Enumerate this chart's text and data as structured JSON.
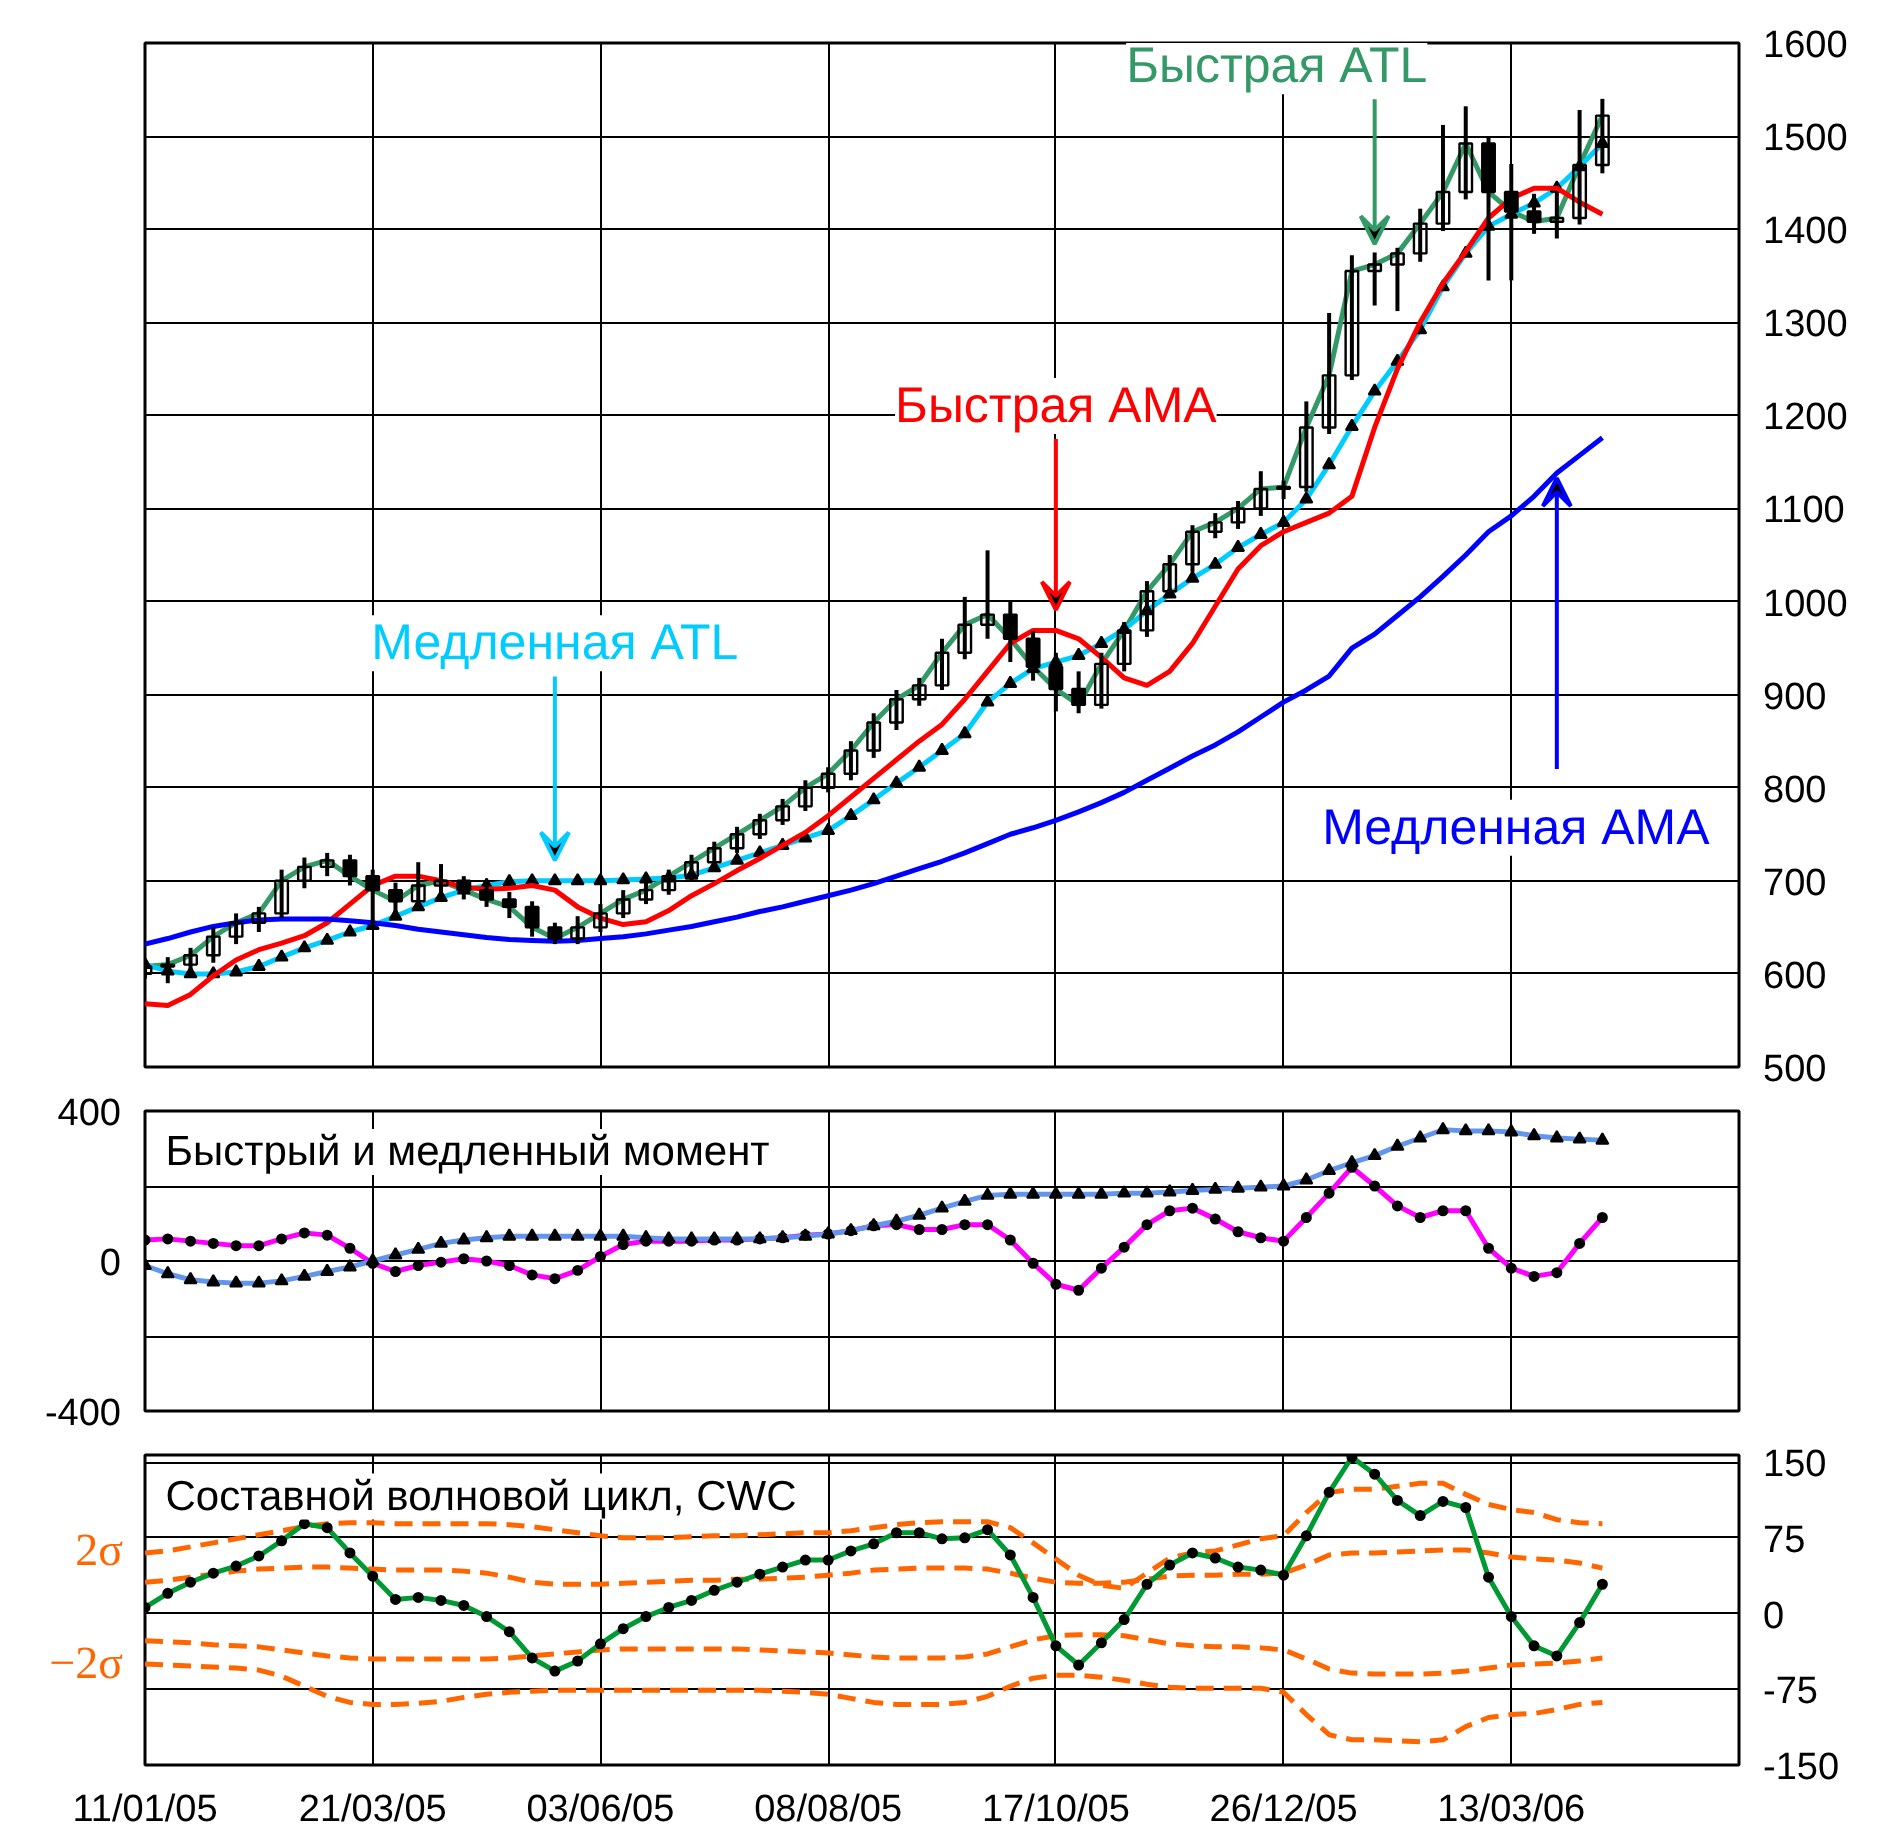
{
  "chart_data": [
    {
      "type": "candlestick",
      "tick_labels": "y",
      "grid": true,
      "categories": [
        null,
        null,
        null,
        null,
        null,
        null,
        null,
        null,
        null,
        null,
        null,
        null,
        null,
        null,
        null,
        null,
        null,
        null,
        null,
        null,
        null,
        null,
        null,
        null,
        null,
        null,
        null,
        null,
        null,
        null,
        null,
        null,
        null,
        null,
        null,
        null,
        null,
        null,
        null,
        null,
        null,
        null,
        null,
        null,
        null,
        null,
        null,
        null,
        null,
        null,
        null,
        null,
        null,
        null,
        null,
        null,
        null,
        null,
        null,
        null,
        null,
        null,
        null,
        null,
        null,
        null,
        null,
        null,
        null,
        null,
        null
      ],
      "ylim": [
        500,
        1600
      ],
      "yticks": [
        500,
        600,
        700,
        800,
        900,
        1000,
        1100,
        1200,
        1300,
        1400,
        1500,
        1600
      ],
      "ohlc": [
        [
          600,
          615,
          595,
          608
        ],
        [
          608,
          618,
          590,
          610
        ],
        [
          610,
          628,
          600,
          620
        ],
        [
          620,
          650,
          612,
          640
        ],
        [
          640,
          665,
          632,
          655
        ],
        [
          655,
          672,
          645,
          665
        ],
        [
          665,
          712,
          660,
          700
        ],
        [
          700,
          725,
          692,
          715
        ],
        [
          715,
          730,
          705,
          722
        ],
        [
          722,
          728,
          695,
          705
        ],
        [
          705,
          712,
          650,
          690
        ],
        [
          690,
          698,
          660,
          678
        ],
        [
          678,
          720,
          672,
          695
        ],
        [
          695,
          718,
          688,
          700
        ],
        [
          700,
          705,
          680,
          690
        ],
        [
          690,
          700,
          672,
          680
        ],
        [
          680,
          688,
          660,
          672
        ],
        [
          672,
          678,
          640,
          650
        ],
        [
          650,
          655,
          632,
          638
        ],
        [
          638,
          662,
          632,
          650
        ],
        [
          650,
          675,
          645,
          665
        ],
        [
          665,
          690,
          660,
          680
        ],
        [
          680,
          698,
          675,
          690
        ],
        [
          690,
          712,
          685,
          705
        ],
        [
          705,
          728,
          700,
          720
        ],
        [
          720,
          742,
          715,
          735
        ],
        [
          735,
          758,
          730,
          750
        ],
        [
          750,
          772,
          745,
          765
        ],
        [
          765,
          788,
          760,
          780
        ],
        [
          780,
          808,
          775,
          800
        ],
        [
          800,
          822,
          795,
          815
        ],
        [
          815,
          850,
          808,
          840
        ],
        [
          840,
          880,
          832,
          870
        ],
        [
          870,
          905,
          862,
          895
        ],
        [
          895,
          918,
          888,
          910
        ],
        [
          910,
          960,
          905,
          945
        ],
        [
          945,
          1005,
          938,
          975
        ],
        [
          975,
          1055,
          960,
          986
        ],
        [
          986,
          1000,
          935,
          960
        ],
        [
          960,
          968,
          915,
          930
        ],
        [
          930,
          945,
          882,
          906
        ],
        [
          906,
          925,
          880,
          889
        ],
        [
          889,
          945,
          885,
          933
        ],
        [
          933,
          978,
          925,
          969
        ],
        [
          969,
          1022,
          962,
          1011
        ],
        [
          1011,
          1050,
          1005,
          1040
        ],
        [
          1040,
          1082,
          1032,
          1075
        ],
        [
          1075,
          1095,
          1068,
          1085
        ],
        [
          1085,
          1108,
          1078,
          1100
        ],
        [
          1100,
          1140,
          1092,
          1121
        ],
        [
          1121,
          1130,
          1110,
          1123
        ],
        [
          1123,
          1215,
          1118,
          1187
        ],
        [
          1187,
          1310,
          1180,
          1243
        ],
        [
          1243,
          1372,
          1238,
          1355
        ],
        [
          1355,
          1375,
          1318,
          1362
        ],
        [
          1362,
          1380,
          1312,
          1374
        ],
        [
          1374,
          1422,
          1365,
          1406
        ],
        [
          1406,
          1512,
          1398,
          1440
        ],
        [
          1440,
          1532,
          1432,
          1492
        ],
        [
          1492,
          1500,
          1345,
          1440
        ],
        [
          1440,
          1470,
          1345,
          1419
        ],
        [
          1419,
          1438,
          1395,
          1408
        ],
        [
          1408,
          1440,
          1390,
          1412
        ],
        [
          1412,
          1528,
          1405,
          1469
        ],
        [
          1469,
          1540,
          1460,
          1522
        ],
        null,
        null,
        null,
        null,
        null,
        null
      ],
      "series": [
        {
          "type": "line",
          "name": "Быстрая ATL",
          "color": "#339966",
          "values": [
            608,
            610,
            620,
            640,
            655,
            665,
            700,
            715,
            722,
            705,
            690,
            678,
            695,
            700,
            690,
            680,
            672,
            650,
            638,
            650,
            665,
            680,
            690,
            705,
            720,
            735,
            750,
            765,
            780,
            800,
            815,
            840,
            870,
            895,
            910,
            945,
            975,
            986,
            960,
            930,
            906,
            889,
            933,
            969,
            1011,
            1040,
            1075,
            1085,
            1100,
            1121,
            1123,
            1187,
            1243,
            1355,
            1362,
            1374,
            1406,
            1440,
            1492,
            1440,
            1419,
            1408,
            1412,
            1469,
            1522,
            null,
            null,
            null,
            null,
            null,
            null
          ]
        },
        {
          "type": "line",
          "name": "Медленная ATL",
          "color": "#00ccff",
          "marker": "triangle",
          "values": [
            610,
            603,
            600,
            600,
            602,
            608,
            618,
            628,
            636,
            645,
            652,
            662,
            672,
            682,
            690,
            695,
            699,
            700,
            700,
            700,
            700,
            701,
            702,
            703,
            706,
            714,
            722,
            730,
            738,
            746,
            754,
            770,
            787,
            805,
            822,
            840,
            858,
            892,
            912,
            928,
            935,
            942,
            955,
            970,
            990,
            1008,
            1025,
            1040,
            1058,
            1072,
            1085,
            1110,
            1147,
            1188,
            1226,
            1258,
            1292,
            1338,
            1374,
            1403,
            1416,
            1428,
            1444,
            1467,
            1492,
            null,
            null,
            null,
            null,
            null,
            null
          ]
        },
        {
          "type": "line",
          "name": "Быстрая AMA",
          "color": "#ff0000",
          "values": [
            568,
            566,
            578,
            598,
            615,
            626,
            633,
            641,
            655,
            675,
            695,
            705,
            705,
            700,
            693,
            691,
            692,
            695,
            690,
            672,
            660,
            653,
            656,
            668,
            684,
            697,
            711,
            724,
            738,
            752,
            770,
            790,
            810,
            830,
            850,
            868,
            895,
            925,
            955,
            969,
            969,
            960,
            940,
            918,
            910,
            925,
            955,
            995,
            1035,
            1060,
            1075,
            1085,
            1095,
            1113,
            1187,
            1250,
            1300,
            1342,
            1376,
            1412,
            1433,
            1444,
            1444,
            1429,
            1416,
            null,
            null,
            null,
            null,
            null,
            null
          ]
        },
        {
          "type": "line",
          "name": "Медленная AMA",
          "color": "#0000ff",
          "values": [
            632,
            638,
            645,
            651,
            655,
            658,
            659,
            659,
            659,
            657,
            655,
            652,
            648,
            645,
            642,
            639,
            637,
            636,
            635,
            636,
            638,
            640,
            643,
            647,
            651,
            656,
            661,
            667,
            672,
            678,
            684,
            690,
            697,
            705,
            713,
            721,
            730,
            740,
            750,
            757,
            765,
            774,
            784,
            795,
            808,
            821,
            834,
            846,
            860,
            876,
            892,
            905,
            920,
            950,
            965,
            985,
            1005,
            1027,
            1050,
            1075,
            1092,
            1113,
            1138,
            1157,
            1176,
            null,
            null,
            null,
            null,
            null,
            null
          ]
        }
      ]
    },
    {
      "type": "line",
      "tick_labels": "y",
      "grid": true,
      "title": "Быстрый и медленный момент",
      "categories": [
        null,
        null,
        null,
        null,
        null,
        null,
        null,
        null,
        null,
        null,
        null,
        null,
        null,
        null,
        null,
        null,
        null,
        null,
        null,
        null,
        null,
        null,
        null,
        null,
        null,
        null,
        null,
        null,
        null,
        null,
        null,
        null,
        null,
        null,
        null,
        null,
        null,
        null,
        null,
        null,
        null,
        null,
        null,
        null,
        null,
        null,
        null,
        null,
        null,
        null,
        null,
        null,
        null,
        null,
        null,
        null,
        null,
        null,
        null,
        null,
        null,
        null,
        null,
        null,
        null,
        null,
        null,
        null,
        null,
        null,
        null
      ],
      "ylim": [
        -400,
        400
      ],
      "yticks": [
        -400,
        {
          "value": -200,
          "label": null
        },
        0,
        {
          "value": 200,
          "label": null
        },
        400
      ],
      "series": [
        {
          "color": "#ff00ff",
          "marker": "circle",
          "values": [
            56,
            59,
            53,
            47,
            41,
            41,
            59,
            75,
            69,
            34,
            -6,
            -28,
            -12,
            -3,
            6,
            0,
            -12,
            -37,
            -47,
            -25,
            12,
            44,
            53,
            53,
            53,
            56,
            56,
            59,
            62,
            69,
            72,
            81,
            94,
            97,
            84,
            84,
            97,
            97,
            56,
            -6,
            -62,
            -78,
            -19,
            37,
            97,
            134,
            141,
            112,
            78,
            62,
            53,
            116,
            181,
            250,
            200,
            147,
            116,
            134,
            134,
            34,
            -19,
            -41,
            -31,
            47,
            116,
            null,
            null,
            null,
            null,
            null,
            null
          ]
        },
        {
          "color": "#6495ed",
          "marker": "triangle",
          "values": [
            -12,
            -34,
            -50,
            -56,
            -59,
            -59,
            -53,
            -41,
            -28,
            -16,
            0,
            16,
            31,
            47,
            56,
            62,
            66,
            66,
            66,
            66,
            66,
            66,
            62,
            59,
            59,
            59,
            59,
            59,
            62,
            66,
            72,
            81,
            94,
            106,
            122,
            141,
            159,
            175,
            178,
            178,
            178,
            178,
            178,
            181,
            181,
            184,
            188,
            191,
            194,
            197,
            200,
            216,
            241,
            262,
            281,
            306,
            328,
            350,
            347,
            347,
            344,
            334,
            328,
            325,
            322,
            null,
            null,
            null,
            null,
            null,
            null
          ]
        }
      ]
    },
    {
      "type": "line",
      "grid": true,
      "title": "Составной волновой цикл, CWC",
      "categories": [
        "11/01/05",
        null,
        null,
        null,
        null,
        null,
        null,
        null,
        null,
        null,
        "21/03/05",
        null,
        null,
        null,
        null,
        null,
        null,
        null,
        null,
        null,
        "03/06/05",
        null,
        null,
        null,
        null,
        null,
        null,
        null,
        null,
        null,
        "08/08/05",
        null,
        null,
        null,
        null,
        null,
        null,
        null,
        null,
        null,
        "17/10/05",
        null,
        null,
        null,
        null,
        null,
        null,
        null,
        null,
        null,
        "26/12/05",
        null,
        null,
        null,
        null,
        null,
        null,
        null,
        null,
        null,
        "13/03/06",
        null,
        null,
        null,
        null,
        null,
        null,
        null,
        null,
        null,
        null
      ],
      "ylim": [
        -150,
        157
      ],
      "yticks": [
        -150,
        -75,
        0,
        75,
        150
      ],
      "annotations": [
        "2σ",
        "−2σ"
      ],
      "series": [
        {
          "color": "#ff6600",
          "line_style": "dashed",
          "values": [
            60,
            62,
            66,
            70,
            74,
            78,
            82,
            86,
            89,
            90,
            90,
            89,
            89,
            89,
            89,
            89,
            88,
            86,
            83,
            80,
            77,
            75,
            75,
            75,
            76,
            77,
            77,
            78,
            79,
            80,
            80,
            82,
            85,
            88,
            90,
            91,
            91,
            91,
            85,
            70,
            54,
            38,
            28,
            25,
            40,
            55,
            60,
            62,
            68,
            74,
            77,
            100,
            120,
            123,
            123,
            126,
            129,
            129,
            118,
            108,
            103,
            100,
            93,
            90,
            89,
            null,
            null,
            null,
            null,
            null,
            null
          ]
        },
        {
          "color": "#ff6600",
          "line_style": "dashed",
          "values": [
            31,
            33,
            36,
            39,
            42,
            44,
            45,
            46,
            46,
            45,
            44,
            43,
            43,
            43,
            42,
            40,
            36,
            31,
            29,
            29,
            29,
            30,
            31,
            32,
            33,
            33,
            34,
            34,
            35,
            36,
            38,
            40,
            43,
            44,
            45,
            45,
            45,
            44,
            40,
            35,
            31,
            30,
            30,
            31,
            34,
            37,
            38,
            38,
            39,
            39,
            40,
            48,
            58,
            60,
            60,
            61,
            62,
            63,
            63,
            60,
            56,
            54,
            53,
            50,
            45,
            null,
            null,
            null,
            null,
            null,
            null
          ]
        },
        {
          "color": "#ff6600",
          "line_style": "dashed",
          "values": [
            -27,
            -28,
            -29,
            -31,
            -32,
            -33,
            -36,
            -39,
            -42,
            -44,
            -45,
            -45,
            -45,
            -45,
            -45,
            -45,
            -44,
            -42,
            -40,
            -38,
            -36,
            -35,
            -35,
            -35,
            -35,
            -35,
            -35,
            -36,
            -37,
            -38,
            -39,
            -41,
            -43,
            -44,
            -44,
            -44,
            -43,
            -40,
            -33,
            -26,
            -22,
            -21,
            -21,
            -22,
            -26,
            -30,
            -32,
            -33,
            -33,
            -34,
            -36,
            -45,
            -55,
            -59,
            -60,
            -60,
            -60,
            -59,
            -57,
            -54,
            -51,
            -50,
            -49,
            -47,
            -44,
            null,
            null,
            null,
            null,
            null,
            null
          ]
        },
        {
          "color": "#ff6600",
          "line_style": "dashed",
          "values": [
            -50,
            -51,
            -52,
            -53,
            -54,
            -56,
            -62,
            -72,
            -82,
            -88,
            -90,
            -90,
            -89,
            -87,
            -83,
            -80,
            -78,
            -77,
            -76,
            -76,
            -76,
            -76,
            -76,
            -76,
            -76,
            -76,
            -76,
            -76,
            -77,
            -78,
            -80,
            -84,
            -88,
            -90,
            -90,
            -90,
            -88,
            -82,
            -72,
            -64,
            -61,
            -61,
            -63,
            -66,
            -70,
            -73,
            -74,
            -74,
            -74,
            -74,
            -78,
            -100,
            -120,
            -125,
            -125,
            -126,
            -127,
            -125,
            -112,
            -103,
            -100,
            -99,
            -95,
            -90,
            -88,
            null,
            null,
            null,
            null,
            null,
            null
          ]
        },
        {
          "color": "#009933",
          "marker": "circle",
          "values": [
            6,
            20,
            31,
            40,
            47,
            57,
            72,
            89,
            85,
            60,
            37,
            14,
            16,
            13,
            8,
            -3,
            -18,
            -44,
            -57,
            -47,
            -30,
            -15,
            -3,
            6,
            13,
            23,
            31,
            39,
            46,
            53,
            53,
            62,
            69,
            80,
            80,
            74,
            75,
            83,
            58,
            16,
            -32,
            -51,
            -29,
            -6,
            29,
            48,
            60,
            55,
            46,
            43,
            38,
            77,
            120,
            155,
            138,
            112,
            97,
            111,
            105,
            36,
            -3,
            -32,
            -42,
            -9,
            29,
            null,
            null,
            null,
            null,
            null,
            null
          ]
        }
      ]
    }
  ]
}
